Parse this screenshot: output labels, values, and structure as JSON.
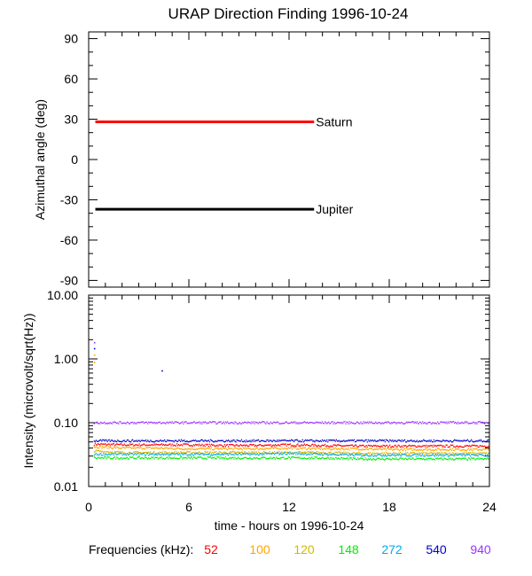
{
  "chart_data": [
    {
      "type": "line",
      "title": "URAP Direction Finding  1996-10-24",
      "ylabel": "Azimuthal angle (deg)",
      "xlim": [
        0,
        24
      ],
      "ylim": [
        -95,
        95
      ],
      "y_ticks": [
        "90",
        "60",
        "30",
        "0",
        "-30",
        "-60",
        "-90"
      ],
      "y_tick_values": [
        90,
        60,
        30,
        0,
        -30,
        -60,
        -90
      ],
      "grid": false,
      "series": [
        {
          "name": "Saturn",
          "color": "#ff0000",
          "x": [
            0.4,
            13.5
          ],
          "y": [
            28,
            28
          ]
        },
        {
          "name": "Jupiter",
          "color": "#000000",
          "x": [
            0.4,
            13.5
          ],
          "y": [
            -37,
            -37
          ]
        }
      ]
    },
    {
      "type": "scatter",
      "ylabel": "Intensity (microvolt/sqrt(Hz))",
      "xlabel": "time - hours on 1996-10-24",
      "xlim": [
        0,
        24
      ],
      "ylim": [
        0.01,
        10
      ],
      "y_scale": "log",
      "x_ticks": [
        "0",
        "6",
        "12",
        "18",
        "24"
      ],
      "x_tick_values": [
        0,
        6,
        12,
        18,
        24
      ],
      "y_ticks": [
        "10.00",
        "1.00",
        "0.10",
        "0.01"
      ],
      "y_tick_values": [
        10,
        1,
        0.1,
        0.01
      ],
      "grid": false,
      "legend": {
        "label": "Frequencies (kHz):",
        "placement": "bottom",
        "entries": [
          {
            "text": "52",
            "color": "#ff0000"
          },
          {
            "text": "100",
            "color": "#ffa500"
          },
          {
            "text": "120",
            "color": "#d4b800"
          },
          {
            "text": "148",
            "color": "#00ee00"
          },
          {
            "text": "272",
            "color": "#00aaee"
          },
          {
            "text": "540",
            "color": "#0000cc"
          },
          {
            "text": "940",
            "color": "#9933ff"
          }
        ]
      },
      "series": [
        {
          "name": "52",
          "color": "#ff0000",
          "x": [
            0.3,
            2,
            4,
            6,
            8,
            10,
            12,
            14,
            16,
            18,
            20,
            22,
            23.9
          ],
          "y": [
            0.046,
            0.045,
            0.045,
            0.045,
            0.044,
            0.044,
            0.045,
            0.044,
            0.043,
            0.043,
            0.043,
            0.043,
            0.043
          ]
        },
        {
          "name": "100",
          "color": "#ffa500",
          "x": [
            0.3,
            2,
            4,
            6,
            8,
            10,
            12,
            14,
            16,
            18,
            20,
            22,
            23.9
          ],
          "y": [
            0.042,
            0.04,
            0.04,
            0.039,
            0.039,
            0.039,
            0.04,
            0.039,
            0.039,
            0.038,
            0.038,
            0.038,
            0.038
          ]
        },
        {
          "name": "120",
          "color": "#d4b800",
          "x": [
            0.3,
            2,
            4,
            6,
            8,
            10,
            12,
            14,
            16,
            18,
            20,
            22,
            23.9
          ],
          "y": [
            0.036,
            0.034,
            0.034,
            0.034,
            0.034,
            0.034,
            0.034,
            0.034,
            0.033,
            0.033,
            0.033,
            0.033,
            0.033
          ]
        },
        {
          "name": "148",
          "color": "#00ee00",
          "x": [
            0.3,
            2,
            4,
            6,
            8,
            10,
            12,
            14,
            16,
            18,
            20,
            22,
            23.9
          ],
          "y": [
            0.028,
            0.028,
            0.028,
            0.028,
            0.028,
            0.028,
            0.028,
            0.028,
            0.027,
            0.027,
            0.027,
            0.027,
            0.027
          ]
        },
        {
          "name": "272",
          "color": "#00aaee",
          "x": [
            0.3,
            2,
            4,
            6,
            8,
            10,
            12,
            14,
            16,
            18,
            20,
            22,
            23.9
          ],
          "y": [
            0.032,
            0.032,
            0.032,
            0.032,
            0.032,
            0.032,
            0.033,
            0.032,
            0.031,
            0.031,
            0.031,
            0.031,
            0.031
          ]
        },
        {
          "name": "540",
          "color": "#0000cc",
          "x": [
            0.3,
            2,
            4,
            6,
            8,
            10,
            12,
            14,
            16,
            18,
            20,
            22,
            23.9
          ],
          "y": [
            0.052,
            0.052,
            0.052,
            0.052,
            0.052,
            0.052,
            0.052,
            0.052,
            0.052,
            0.052,
            0.052,
            0.052,
            0.052
          ]
        },
        {
          "name": "940",
          "color": "#9933ff",
          "x": [
            0.3,
            2,
            4,
            6,
            8,
            10,
            12,
            14,
            16,
            18,
            20,
            22,
            23.9
          ],
          "y": [
            0.1,
            0.1,
            0.1,
            0.1,
            0.1,
            0.1,
            0.1,
            0.1,
            0.1,
            0.1,
            0.1,
            0.1,
            0.1
          ]
        }
      ],
      "outliers": [
        {
          "x": 0.35,
          "y": 1.8,
          "color": "#9933ff"
        },
        {
          "x": 0.35,
          "y": 1.45,
          "color": "#0000cc"
        },
        {
          "x": 0.35,
          "y": 1.15,
          "color": "#ffa500"
        },
        {
          "x": 0.35,
          "y": 0.88,
          "color": "#ffa500"
        },
        {
          "x": 4.4,
          "y": 0.65,
          "color": "#0000cc"
        }
      ]
    }
  ]
}
